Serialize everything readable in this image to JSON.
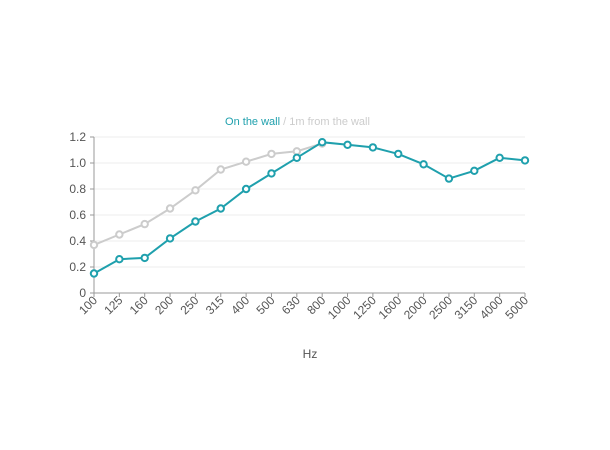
{
  "chart_data": {
    "type": "line",
    "xlabel": "Hz",
    "ylabel": "",
    "ylim": [
      0,
      1.2
    ],
    "yticks": [
      "0",
      "0.2",
      "0.4",
      "0.6",
      "0.8",
      "1.0",
      "1.2"
    ],
    "categories": [
      "100",
      "125",
      "160",
      "200",
      "250",
      "315",
      "400",
      "500",
      "630",
      "800",
      "1000",
      "1250",
      "1600",
      "2000",
      "2500",
      "3150",
      "4000",
      "5000"
    ],
    "legend_separator": "/",
    "series": [
      {
        "name": "On the wall",
        "color": "#1fa0ad",
        "values": [
          0.15,
          0.26,
          0.27,
          0.42,
          0.55,
          0.65,
          0.8,
          0.92,
          1.04,
          1.16,
          1.14,
          1.12,
          1.07,
          0.99,
          0.88,
          0.94,
          1.04,
          1.02
        ]
      },
      {
        "name": "1m from the wall",
        "color": "#cccccc",
        "values": [
          0.37,
          0.45,
          0.53,
          0.65,
          0.79,
          0.95,
          1.01,
          1.07,
          1.09,
          1.15,
          null,
          null,
          null,
          null,
          null,
          null,
          null,
          null
        ]
      }
    ]
  }
}
